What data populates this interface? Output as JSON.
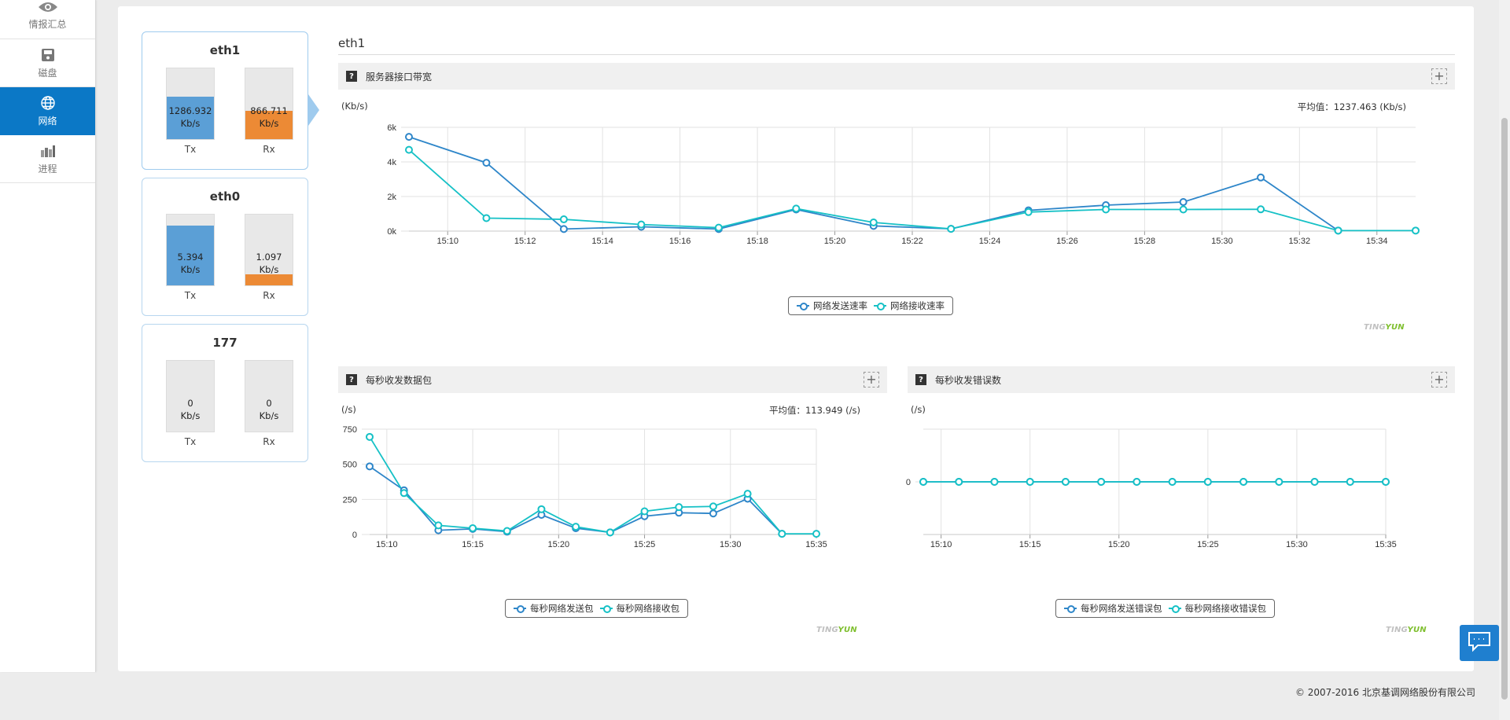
{
  "sidebar": {
    "items": [
      {
        "label": "情报汇总",
        "icon": "eye-icon",
        "active": false
      },
      {
        "label": "磁盘",
        "icon": "disk-icon",
        "active": false
      },
      {
        "label": "网络",
        "icon": "globe-icon",
        "active": true
      },
      {
        "label": "进程",
        "icon": "process-bars-icon",
        "active": false
      }
    ]
  },
  "interfaces": [
    {
      "name": "eth1",
      "tx_value": "1286.932",
      "rx_value": "866.711",
      "unit": "Kb/s",
      "tx_label": "Tx",
      "rx_label": "Rx",
      "tx_fill": 0.6,
      "rx_fill": 0.4,
      "selected": true
    },
    {
      "name": "eth0",
      "tx_value": "5.394",
      "rx_value": "1.097",
      "unit": "Kb/s",
      "tx_label": "Tx",
      "rx_label": "Rx",
      "tx_fill": 0.84,
      "rx_fill": 0.16,
      "selected": false
    },
    {
      "name": "177",
      "tx_value": "0",
      "rx_value": "0",
      "unit": "Kb/s",
      "tx_label": "Tx",
      "rx_label": "Rx",
      "tx_fill": 0,
      "rx_fill": 0,
      "selected": false
    }
  ],
  "section_title": "eth1",
  "colors": {
    "send": "#2e86c9",
    "receive": "#16c1c6",
    "accent": "#0b78c6",
    "tx_bar": "#5b9fd6",
    "rx_bar": "#ec8a35"
  },
  "charts": {
    "bandwidth": {
      "header": "服务器接口带宽",
      "unit": "(Kb/s)",
      "avg_label": "平均值：",
      "avg_value": "1237.463 (Kb/s)",
      "legend": [
        "网络发送速率",
        "网络接收速率"
      ],
      "watermark_a": "TING",
      "watermark_b": "YUN"
    },
    "packets": {
      "header": "每秒收发数据包",
      "unit": "(/s)",
      "avg_label": "平均值：",
      "avg_value": "113.949 (/s)",
      "legend": [
        "每秒网络发送包",
        "每秒网络接收包"
      ],
      "watermark_a": "TING",
      "watermark_b": "YUN"
    },
    "errors": {
      "header": "每秒收发错误数",
      "unit": "(/s)",
      "legend": [
        "每秒网络发送错误包",
        "每秒网络接收错误包"
      ],
      "watermark_a": "TING",
      "watermark_b": "YUN"
    }
  },
  "chart_data": [
    {
      "type": "line",
      "title": "服务器接口带宽",
      "ylabel": "(Kb/s)",
      "ylim": [
        0,
        6000
      ],
      "yticks": [
        0,
        2000,
        4000,
        6000
      ],
      "ytick_labels": [
        "0k",
        "2k",
        "4k",
        "6k"
      ],
      "xlim": [
        "15:09",
        "15:35"
      ],
      "xticks": [
        "15:10",
        "15:12",
        "15:14",
        "15:16",
        "15:18",
        "15:20",
        "15:22",
        "15:24",
        "15:26",
        "15:28",
        "15:30",
        "15:32",
        "15:34"
      ],
      "grid": true,
      "legend_position": "bottom-center",
      "series": [
        {
          "name": "网络发送速率",
          "x": [
            "15:09",
            "15:11",
            "15:13",
            "15:15",
            "15:17",
            "15:19",
            "15:21",
            "15:23",
            "15:25",
            "15:27",
            "15:29",
            "15:31",
            "15:33"
          ],
          "values": [
            5450,
            3950,
            120,
            250,
            120,
            1250,
            300,
            130,
            1200,
            1500,
            1680,
            3100,
            30
          ]
        },
        {
          "name": "网络接收速率",
          "x": [
            "15:09",
            "15:11",
            "15:13",
            "15:15",
            "15:17",
            "15:19",
            "15:21",
            "15:23",
            "15:25",
            "15:27",
            "15:29",
            "15:31",
            "15:33",
            "15:35"
          ],
          "values": [
            4700,
            750,
            680,
            380,
            200,
            1300,
            500,
            130,
            1100,
            1250,
            1250,
            1260,
            30,
            30
          ]
        }
      ]
    },
    {
      "type": "line",
      "title": "每秒收发数据包",
      "ylabel": "(/s)",
      "ylim": [
        0,
        750
      ],
      "yticks": [
        0,
        250,
        500,
        750
      ],
      "xlim": [
        "15:09",
        "15:35"
      ],
      "xticks": [
        "15:10",
        "15:15",
        "15:20",
        "15:25",
        "15:30",
        "15:35"
      ],
      "grid": true,
      "legend_position": "bottom-center",
      "series": [
        {
          "name": "每秒网络发送包",
          "x": [
            "15:09",
            "15:11",
            "15:13",
            "15:15",
            "15:17",
            "15:19",
            "15:21",
            "15:23",
            "15:25",
            "15:27",
            "15:29",
            "15:31",
            "15:33"
          ],
          "values": [
            485,
            315,
            30,
            40,
            20,
            140,
            45,
            15,
            130,
            155,
            150,
            255,
            5
          ]
        },
        {
          "name": "每秒网络接收包",
          "x": [
            "15:09",
            "15:11",
            "15:13",
            "15:15",
            "15:17",
            "15:19",
            "15:21",
            "15:23",
            "15:25",
            "15:27",
            "15:29",
            "15:31",
            "15:33",
            "15:35"
          ],
          "values": [
            695,
            295,
            65,
            45,
            25,
            180,
            55,
            15,
            165,
            195,
            200,
            290,
            5,
            5
          ]
        }
      ]
    },
    {
      "type": "line",
      "title": "每秒收发错误数",
      "ylabel": "(/s)",
      "ylim": [
        -1,
        1
      ],
      "yticks": [
        0
      ],
      "xlim": [
        "15:09",
        "15:35"
      ],
      "xticks": [
        "15:10",
        "15:15",
        "15:20",
        "15:25",
        "15:30",
        "15:35"
      ],
      "grid": true,
      "legend_position": "bottom-center",
      "series": [
        {
          "name": "每秒网络发送错误包",
          "x": [
            "15:09",
            "15:11",
            "15:13",
            "15:15",
            "15:17",
            "15:19",
            "15:21",
            "15:23",
            "15:25",
            "15:27",
            "15:29",
            "15:31",
            "15:33",
            "15:35"
          ],
          "values": [
            0,
            0,
            0,
            0,
            0,
            0,
            0,
            0,
            0,
            0,
            0,
            0,
            0,
            0
          ]
        },
        {
          "name": "每秒网络接收错误包",
          "x": [
            "15:09",
            "15:11",
            "15:13",
            "15:15",
            "15:17",
            "15:19",
            "15:21",
            "15:23",
            "15:25",
            "15:27",
            "15:29",
            "15:31",
            "15:33",
            "15:35"
          ],
          "values": [
            0,
            0,
            0,
            0,
            0,
            0,
            0,
            0,
            0,
            0,
            0,
            0,
            0,
            0
          ]
        }
      ]
    }
  ],
  "footer": {
    "copyright": "© 2007-2016  北京基调网络股份有限公司"
  }
}
